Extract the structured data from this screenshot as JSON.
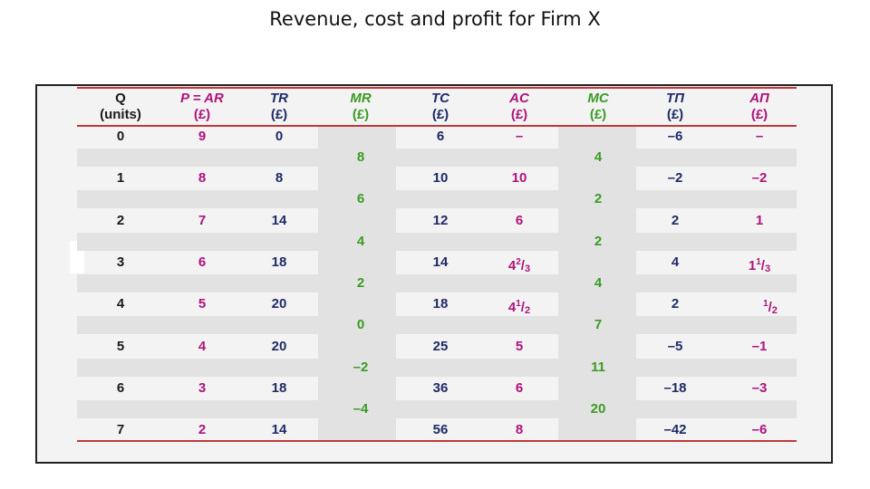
{
  "title": "Revenue, cost and profit for Firm X",
  "colors": {
    "black": "#1a1a1a",
    "magenta": "#b0127c",
    "green": "#3b9b23",
    "purple": "#6a1e8f",
    "navy": "#1f2a66",
    "rule": "#c0393b"
  },
  "columns": [
    {
      "symbol": "Q",
      "unit": "(units)",
      "color": "black"
    },
    {
      "symbol": "P = AR",
      "unit": "(£)",
      "color": "magenta"
    },
    {
      "symbol": "TR",
      "unit": "(£)",
      "color": "navy"
    },
    {
      "symbol": "MR",
      "unit": "(£)",
      "color": "green"
    },
    {
      "symbol": "TC",
      "unit": "(£)",
      "color": "navy"
    },
    {
      "symbol": "AC",
      "unit": "(£)",
      "color": "magenta"
    },
    {
      "symbol": "MC",
      "unit": "(£)",
      "color": "green"
    },
    {
      "symbol": "TΠ",
      "unit": "(£)",
      "color": "navy"
    },
    {
      "symbol": "AΠ",
      "unit": "(£)",
      "color": "magenta"
    }
  ],
  "rows": [
    {
      "q": "0",
      "p": "9",
      "tr": "0",
      "tc": "6",
      "ac": "–",
      "tp": "–6",
      "ap": "–"
    },
    {
      "q": "1",
      "p": "8",
      "tr": "8",
      "tc": "10",
      "ac": "10",
      "tp": "–2",
      "ap": "–2"
    },
    {
      "q": "2",
      "p": "7",
      "tr": "14",
      "tc": "12",
      "ac": "6",
      "tp": "2",
      "ap": "1"
    },
    {
      "q": "3",
      "p": "6",
      "tr": "18",
      "tc": "14",
      "ac": {
        "whole": "4",
        "num": "2",
        "den": "3"
      },
      "tp": "4",
      "ap": {
        "whole": "1",
        "num": "1",
        "den": "3"
      }
    },
    {
      "q": "4",
      "p": "5",
      "tr": "20",
      "tc": "18",
      "ac": {
        "whole": "4",
        "num": "1",
        "den": "2"
      },
      "tp": "2",
      "ap": {
        "whole": "",
        "num": "1",
        "den": "2"
      }
    },
    {
      "q": "5",
      "p": "4",
      "tr": "20",
      "tc": "25",
      "ac": "5",
      "tp": "–5",
      "ap": "–1"
    },
    {
      "q": "6",
      "p": "3",
      "tr": "18",
      "tc": "36",
      "ac": "6",
      "tp": "–18",
      "ap": "–3"
    },
    {
      "q": "7",
      "p": "2",
      "tr": "14",
      "tc": "56",
      "ac": "8",
      "tp": "–42",
      "ap": "–6"
    }
  ],
  "marginals": [
    {
      "mr": "8",
      "mc": "4"
    },
    {
      "mr": "6",
      "mc": "2"
    },
    {
      "mr": "4",
      "mc": "2"
    },
    {
      "mr": "2",
      "mc": "4"
    },
    {
      "mr": "0",
      "mc": "7"
    },
    {
      "mr": "–2",
      "mc": "11"
    },
    {
      "mr": "–4",
      "mc": "20"
    }
  ]
}
